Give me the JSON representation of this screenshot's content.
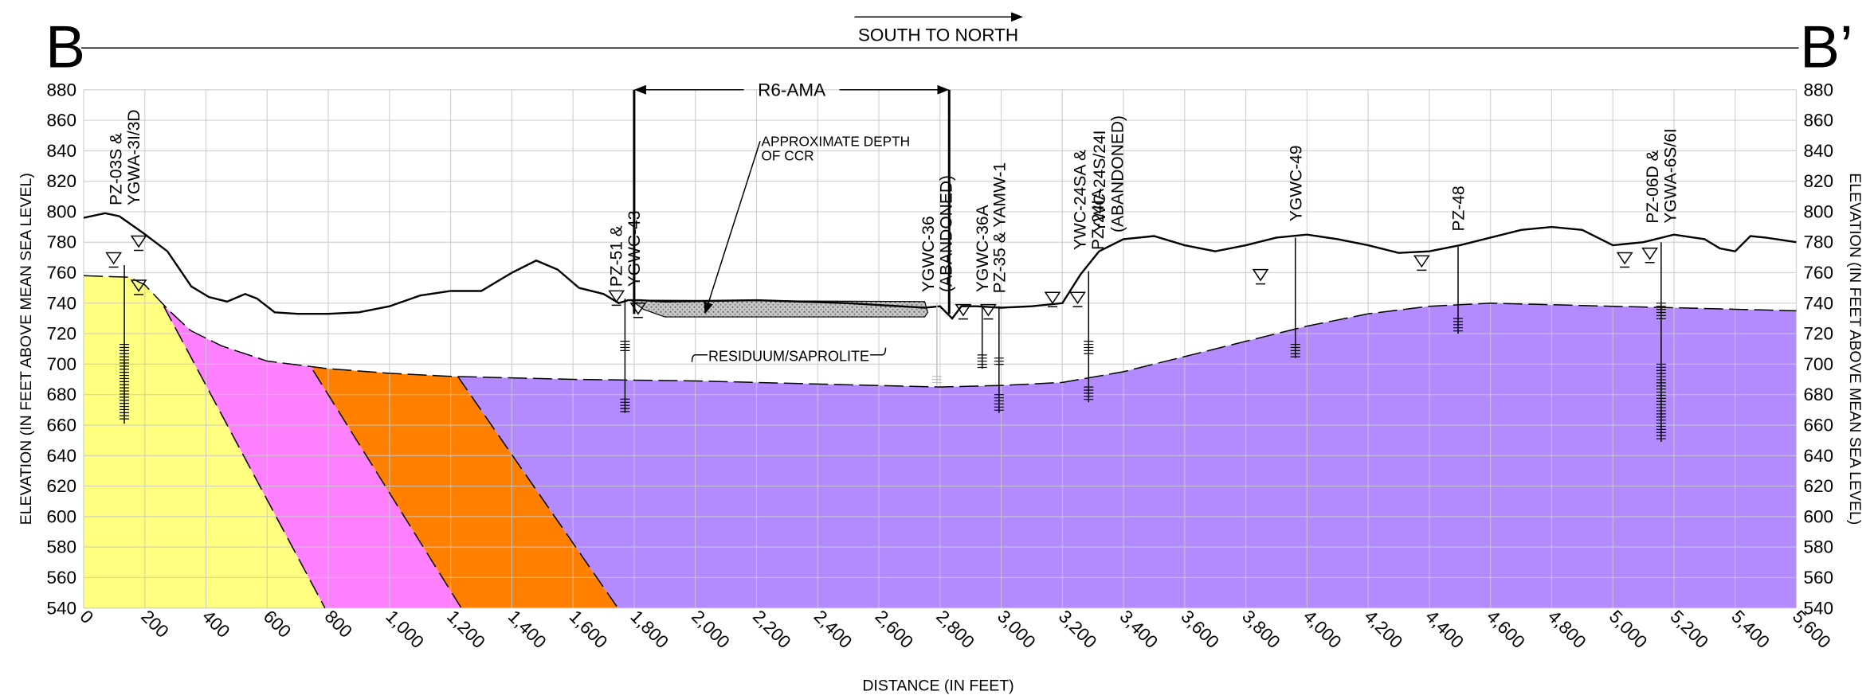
{
  "chart_data": {
    "type": "cross-section",
    "title_left": "B",
    "title_right": "B’",
    "direction": "SOUTH TO NORTH",
    "x_label": "DISTANCE (IN FEET)",
    "y_label": "ELEVATION (IN FEET ABOVE MEAN SEA LEVEL)",
    "xlim": [
      0,
      5600
    ],
    "ylim": [
      540,
      880
    ],
    "xticks": [
      0,
      200,
      400,
      600,
      800,
      {
        "value": 1000,
        "label": "1,000"
      },
      {
        "value": 1200,
        "label": "1,200"
      },
      {
        "value": 1400,
        "label": "1,400"
      },
      {
        "value": 1600,
        "label": "1,600"
      },
      {
        "value": 1800,
        "label": "1,800"
      },
      {
        "value": 2000,
        "label": "2,000"
      },
      {
        "value": 2200,
        "label": "2,200"
      },
      {
        "value": 2400,
        "label": "2,400"
      },
      {
        "value": 2600,
        "label": "2,600"
      },
      {
        "value": 2800,
        "label": "2,800"
      },
      {
        "value": 3000,
        "label": "3,000"
      },
      {
        "value": 3200,
        "label": "3,200"
      },
      {
        "value": 3400,
        "label": "3,400"
      },
      {
        "value": 3600,
        "label": "3,600"
      },
      {
        "value": 3800,
        "label": "3,800"
      },
      {
        "value": 4000,
        "label": "4,000"
      },
      {
        "value": 4200,
        "label": "4,200"
      },
      {
        "value": 4400,
        "label": "4,400"
      },
      {
        "value": 4600,
        "label": "4,600"
      },
      {
        "value": 4800,
        "label": "4,800"
      },
      {
        "value": 5000,
        "label": "5,000"
      },
      {
        "value": 5200,
        "label": "5,200"
      },
      {
        "value": 5400,
        "label": "5,400"
      },
      {
        "value": 5600,
        "label": "5,600"
      }
    ],
    "yticks": [
      540,
      560,
      580,
      600,
      620,
      640,
      660,
      680,
      700,
      720,
      740,
      760,
      780,
      800,
      820,
      840,
      860,
      880
    ],
    "grid": true,
    "ground": {
      "color": "#000000",
      "x": [
        0,
        70,
        117,
        195,
        274,
        352,
        410,
        469,
        528,
        567,
        625,
        700,
        800,
        900,
        1000,
        1100,
        1200,
        1300,
        1400,
        1480,
        1550,
        1620,
        1700,
        1750,
        1780,
        1820,
        1900,
        2200,
        2500,
        2750,
        2800,
        2840,
        2870,
        2920,
        3000,
        3100,
        3200,
        3260,
        3320,
        3400,
        3500,
        3600,
        3700,
        3800,
        3900,
        4000,
        4100,
        4200,
        4300,
        4400,
        4500,
        4600,
        4700,
        4800,
        4900,
        5000,
        5100,
        5200,
        5300,
        5350,
        5400,
        5450,
        5500,
        5600
      ],
      "y": [
        796,
        799,
        797,
        786,
        774,
        751,
        744,
        741,
        746,
        743,
        734,
        733,
        733,
        734,
        738,
        745,
        748,
        748,
        760,
        768,
        762,
        750,
        746,
        740,
        742,
        742,
        741,
        742,
        740,
        737,
        738,
        730,
        738,
        738,
        737,
        738,
        740,
        759,
        774,
        782,
        784,
        778,
        774,
        778,
        783,
        785,
        782,
        778,
        773,
        774,
        778,
        783,
        788,
        790,
        788,
        778,
        780,
        785,
        782,
        776,
        774,
        784,
        783,
        780
      ]
    },
    "bedrock": {
      "color": "#000000",
      "x": [
        0,
        150,
        200,
        280,
        350,
        450,
        600,
        800,
        1000,
        1200,
        1600,
        2000,
        2400,
        2800,
        3000,
        3200,
        3400,
        3600,
        3800,
        4000,
        4200,
        4400,
        4600,
        4800,
        5000,
        5200,
        5400,
        5600
      ],
      "y": [
        758,
        757,
        752,
        735,
        722,
        712,
        702,
        697,
        694,
        692,
        690,
        689,
        687,
        685,
        686,
        688,
        695,
        705,
        715,
        725,
        733,
        738,
        740,
        739,
        738,
        737,
        736,
        735
      ]
    },
    "contacts": [
      {
        "x": [
          262,
          789
        ],
        "y": [
          738,
          540
        ]
      },
      {
        "x": [
          750,
          1235
        ],
        "y": [
          696,
          540
        ]
      },
      {
        "x": [
          1223,
          1747
        ],
        "y": [
          692,
          540
        ]
      }
    ],
    "units": [
      {
        "color": "#ffff80"
      },
      {
        "color": "#ff80ff"
      },
      {
        "color": "#ff8000"
      },
      {
        "color": "#b38bff"
      }
    ],
    "ccr": {
      "x": [
        1790,
        1850,
        2750,
        2760,
        2750,
        1900,
        1830
      ],
      "y": [
        742,
        742,
        741,
        734,
        731,
        731,
        736
      ]
    },
    "r6_ama": {
      "label": "R6-AMA",
      "x": [
        1800,
        2830
      ],
      "y": [
        880,
        733
      ]
    },
    "ccr_label": [
      "APPROXIMATE DEPTH",
      "OF CCR"
    ],
    "residuum_label": "RESIDUUM/SAPROLITE",
    "wells": [
      {
        "label": [
          "PZ-03S &",
          "YGWA-3I/3D"
        ],
        "x": 133,
        "top": 765,
        "bottom": 661,
        "screens": [
          [
            713,
            663
          ]
        ]
      },
      {
        "label": [
          "PZ-51 &",
          "YGWC-43"
        ],
        "x": 1770,
        "top": 743,
        "bottom": 668,
        "screens": [
          [
            715,
            708
          ],
          [
            677,
            668
          ]
        ]
      },
      {
        "label": [
          "YGWC-36",
          "(ABANDONED)"
        ],
        "x": 2790,
        "top": 740,
        "bottom": 686,
        "screens": [
          [
            692,
            686
          ]
        ],
        "color": "#c0c0c0"
      },
      {
        "label": [
          "YGWC-36A"
        ],
        "x": 2938,
        "top": 738,
        "bottom": 697,
        "screens": [
          [
            706,
            697
          ]
        ]
      },
      {
        "label": [
          "PZ-35 & YAMW-1"
        ],
        "x": 2993,
        "top": 738,
        "bottom": 668,
        "screens": [
          [
            704,
            698
          ],
          [
            680,
            668
          ]
        ]
      },
      {
        "label": [
          "YWC-24SA &",
          "PZ-24IA"
        ],
        "x": 3286,
        "top": 761,
        "bottom": 675,
        "screens": [
          [
            715,
            705
          ],
          [
            685,
            675
          ]
        ]
      },
      {
        "label": [
          "YWC-24S/24I",
          "(ABANDONED)"
        ],
        "x": 3350,
        "color": "#c0c0c0"
      },
      {
        "label": [
          "YGWC-49"
        ],
        "x": 3962,
        "top": 783,
        "bottom": 704,
        "screens": [
          [
            713,
            704
          ]
        ]
      },
      {
        "label": [
          "PZ-48"
        ],
        "x": 4494,
        "top": 777,
        "bottom": 720,
        "screens": [
          [
            730,
            720
          ]
        ]
      },
      {
        "label": [
          "PZ-06D &",
          "YGWA-6S/6I"
        ],
        "x": 5158,
        "top": 780,
        "bottom": 649,
        "screens": [
          [
            740,
            728
          ],
          [
            700,
            650
          ]
        ]
      }
    ],
    "water_levels": {
      "x": [
        98,
        180,
        180,
        1742,
        1813,
        2876,
        2958,
        3168,
        3250,
        3848,
        4375,
        5039,
        5121
      ],
      "y": [
        766,
        777,
        748,
        741,
        733,
        732,
        732,
        740,
        740,
        755,
        764,
        766,
        769
      ]
    }
  }
}
